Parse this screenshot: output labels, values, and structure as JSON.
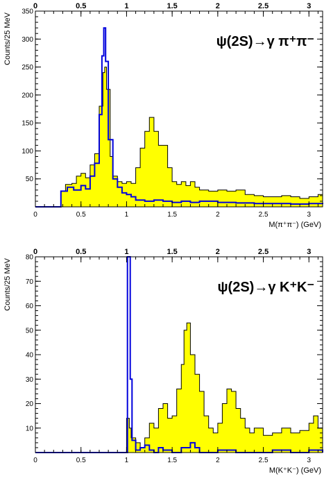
{
  "chart_data": [
    {
      "type": "histogram",
      "title": "ψ(2S)→γ π⁺π⁻",
      "xlabel": "M(π⁺π⁻) (GeV)",
      "ylabel": "Counts/25 MeV",
      "xlim": [
        0,
        3.15
      ],
      "ylim": [
        0,
        350
      ],
      "bin_width_gev": 0.025,
      "x_ticks": [
        "0",
        "0.5",
        "1",
        "1.5",
        "2",
        "2.5",
        "3"
      ],
      "top_x_ticks": [
        "0",
        "0.5",
        "1",
        "1.5",
        "2",
        "2.5",
        "3"
      ],
      "y_ticks": [
        "50",
        "100",
        "150",
        "200",
        "250",
        "300",
        "350"
      ],
      "grid": false,
      "series": [
        {
          "color": "#ffff00",
          "style": "filled-histogram",
          "points": [
            [
              0,
              0
            ],
            [
              0.27,
              0
            ],
            [
              0.28,
              28
            ],
            [
              0.33,
              40
            ],
            [
              0.4,
              42
            ],
            [
              0.45,
              55
            ],
            [
              0.5,
              60
            ],
            [
              0.55,
              52
            ],
            [
              0.6,
              75
            ],
            [
              0.65,
              95
            ],
            [
              0.7,
              180
            ],
            [
              0.74,
              240
            ],
            [
              0.76,
              250
            ],
            [
              0.78,
              210
            ],
            [
              0.82,
              90
            ],
            [
              0.85,
              55
            ],
            [
              0.9,
              45
            ],
            [
              0.95,
              42
            ],
            [
              1.0,
              45
            ],
            [
              1.05,
              42
            ],
            [
              1.1,
              70
            ],
            [
              1.15,
              105
            ],
            [
              1.2,
              135
            ],
            [
              1.25,
              160
            ],
            [
              1.3,
              135
            ],
            [
              1.35,
              110
            ],
            [
              1.4,
              110
            ],
            [
              1.45,
              70
            ],
            [
              1.5,
              45
            ],
            [
              1.55,
              40
            ],
            [
              1.6,
              45
            ],
            [
              1.65,
              38
            ],
            [
              1.7,
              45
            ],
            [
              1.75,
              35
            ],
            [
              1.8,
              30
            ],
            [
              1.9,
              28
            ],
            [
              2.0,
              30
            ],
            [
              2.1,
              28
            ],
            [
              2.2,
              30
            ],
            [
              2.3,
              22
            ],
            [
              2.4,
              20
            ],
            [
              2.5,
              18
            ],
            [
              2.6,
              18
            ],
            [
              2.7,
              20
            ],
            [
              2.8,
              18
            ],
            [
              2.9,
              15
            ],
            [
              3.0,
              18
            ],
            [
              3.1,
              22
            ],
            [
              3.15,
              20
            ]
          ]
        },
        {
          "color": "#0000dd",
          "style": "histogram-outline",
          "points": [
            [
              0,
              0
            ],
            [
              0.27,
              0
            ],
            [
              0.28,
              28
            ],
            [
              0.35,
              35
            ],
            [
              0.42,
              30
            ],
            [
              0.5,
              38
            ],
            [
              0.55,
              32
            ],
            [
              0.6,
              55
            ],
            [
              0.65,
              78
            ],
            [
              0.7,
              165
            ],
            [
              0.73,
              270
            ],
            [
              0.75,
              320
            ],
            [
              0.77,
              260
            ],
            [
              0.8,
              120
            ],
            [
              0.85,
              50
            ],
            [
              0.9,
              35
            ],
            [
              0.95,
              25
            ],
            [
              1.0,
              22
            ],
            [
              1.05,
              18
            ],
            [
              1.1,
              12
            ],
            [
              1.2,
              10
            ],
            [
              1.3,
              12
            ],
            [
              1.4,
              10
            ],
            [
              1.5,
              8
            ],
            [
              1.6,
              10
            ],
            [
              1.7,
              8
            ],
            [
              1.8,
              10
            ],
            [
              2.0,
              8
            ],
            [
              2.2,
              7
            ],
            [
              2.4,
              6
            ],
            [
              2.6,
              6
            ],
            [
              2.8,
              5
            ],
            [
              3.0,
              6
            ],
            [
              3.15,
              5
            ]
          ]
        }
      ]
    },
    {
      "type": "histogram",
      "title": "ψ(2S)→γ K⁺K⁻",
      "xlabel": "M(K⁺K⁻) (GeV)",
      "ylabel": "Counts/25 MeV",
      "xlim": [
        0,
        3.15
      ],
      "ylim": [
        0,
        80
      ],
      "bin_width_gev": 0.025,
      "x_ticks": [
        "0",
        "0.5",
        "1",
        "1.5",
        "2",
        "2.5",
        "3"
      ],
      "top_x_ticks": [
        "0",
        "0.5",
        "1",
        "1.5",
        "2",
        "2.5",
        "3"
      ],
      "y_ticks": [
        "10",
        "20",
        "30",
        "40",
        "50",
        "60",
        "70",
        "80"
      ],
      "grid": false,
      "series": [
        {
          "color": "#ffff00",
          "style": "filled-histogram",
          "points": [
            [
              0,
              0
            ],
            [
              0.99,
              0
            ],
            [
              1.0,
              14
            ],
            [
              1.03,
              10
            ],
            [
              1.05,
              6
            ],
            [
              1.1,
              4
            ],
            [
              1.15,
              2
            ],
            [
              1.2,
              6
            ],
            [
              1.25,
              12
            ],
            [
              1.3,
              10
            ],
            [
              1.35,
              18
            ],
            [
              1.4,
              20
            ],
            [
              1.45,
              14
            ],
            [
              1.5,
              15
            ],
            [
              1.55,
              26
            ],
            [
              1.6,
              36
            ],
            [
              1.63,
              50
            ],
            [
              1.66,
              53
            ],
            [
              1.7,
              40
            ],
            [
              1.75,
              32
            ],
            [
              1.8,
              25
            ],
            [
              1.85,
              15
            ],
            [
              1.9,
              10
            ],
            [
              1.95,
              8
            ],
            [
              2.0,
              12
            ],
            [
              2.05,
              20
            ],
            [
              2.1,
              26
            ],
            [
              2.15,
              25
            ],
            [
              2.2,
              18
            ],
            [
              2.25,
              14
            ],
            [
              2.3,
              10
            ],
            [
              2.35,
              8
            ],
            [
              2.4,
              10
            ],
            [
              2.5,
              7
            ],
            [
              2.6,
              8
            ],
            [
              2.7,
              10
            ],
            [
              2.8,
              8
            ],
            [
              2.9,
              9
            ],
            [
              3.0,
              12
            ],
            [
              3.05,
              15
            ],
            [
              3.1,
              10
            ],
            [
              3.15,
              7
            ]
          ]
        },
        {
          "color": "#0000dd",
          "style": "histogram-outline",
          "points": [
            [
              0,
              0
            ],
            [
              1.0,
              0
            ],
            [
              1.01,
              80
            ],
            [
              1.03,
              80
            ],
            [
              1.04,
              30
            ],
            [
              1.06,
              5
            ],
            [
              1.1,
              1
            ],
            [
              1.15,
              2
            ],
            [
              1.2,
              3
            ],
            [
              1.25,
              1
            ],
            [
              1.3,
              0
            ],
            [
              1.35,
              2
            ],
            [
              1.4,
              1
            ],
            [
              1.5,
              0
            ],
            [
              1.6,
              2
            ],
            [
              1.7,
              4
            ],
            [
              1.75,
              2
            ],
            [
              1.8,
              0
            ],
            [
              2.0,
              1
            ],
            [
              2.2,
              0
            ],
            [
              2.4,
              0
            ],
            [
              2.6,
              1
            ],
            [
              2.8,
              0
            ],
            [
              3.0,
              1
            ],
            [
              3.15,
              0
            ]
          ]
        }
      ]
    }
  ]
}
